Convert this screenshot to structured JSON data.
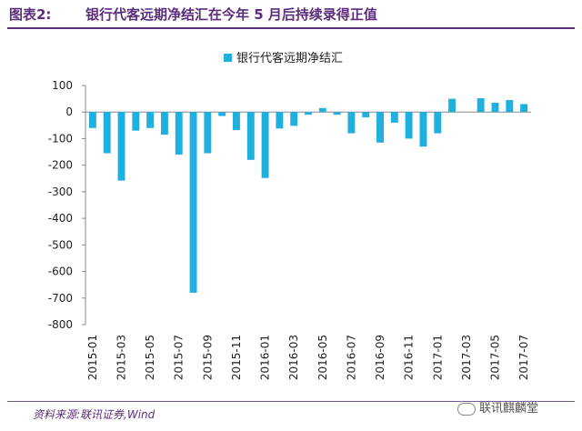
{
  "header": {
    "figure_label": "图表2:",
    "title": "银行代客远期净结汇在今年 5 月后持续录得正值"
  },
  "footer": {
    "source": "资料来源:联讯证券,Wind",
    "watermark": "联讯麒麟堂"
  },
  "colors": {
    "bar": "#1fb0df",
    "axis": "#888888",
    "text": "#222222",
    "brand": "#5b2d7a"
  },
  "chart_data": {
    "type": "bar",
    "title": "",
    "xlabel": "",
    "ylabel": "",
    "legend": {
      "position": "top-center",
      "entries": [
        "银行代客远期净结汇"
      ]
    },
    "grid": false,
    "ylim": [
      -800,
      100
    ],
    "yticks": [
      100,
      0,
      -100,
      -200,
      -300,
      -400,
      -500,
      -600,
      -700,
      -800
    ],
    "categories": [
      "2015-01",
      "2015-02",
      "2015-03",
      "2015-04",
      "2015-05",
      "2015-06",
      "2015-07",
      "2015-08",
      "2015-09",
      "2015-10",
      "2015-11",
      "2015-12",
      "2016-01",
      "2016-02",
      "2016-03",
      "2016-04",
      "2016-05",
      "2016-06",
      "2016-07",
      "2016-08",
      "2016-09",
      "2016-10",
      "2016-11",
      "2016-12",
      "2017-01",
      "2017-02",
      "2017-03",
      "2017-04",
      "2017-05",
      "2017-06",
      "2017-07"
    ],
    "xtick_labels": [
      "2015-01",
      "2015-03",
      "2015-05",
      "2015-07",
      "2015-09",
      "2015-11",
      "2016-01",
      "2016-03",
      "2016-05",
      "2016-07",
      "2016-09",
      "2016-11",
      "2017-01",
      "2017-03",
      "2017-05",
      "2017-07"
    ],
    "series": [
      {
        "name": "银行代客远期净结汇",
        "values": [
          -60,
          -155,
          -258,
          -70,
          -60,
          -85,
          -160,
          -680,
          -155,
          -15,
          -68,
          -180,
          -248,
          -62,
          -52,
          -10,
          15,
          -10,
          -80,
          -20,
          -115,
          -40,
          -100,
          -130,
          -80,
          50,
          0,
          52,
          35,
          45,
          30
        ]
      }
    ]
  }
}
